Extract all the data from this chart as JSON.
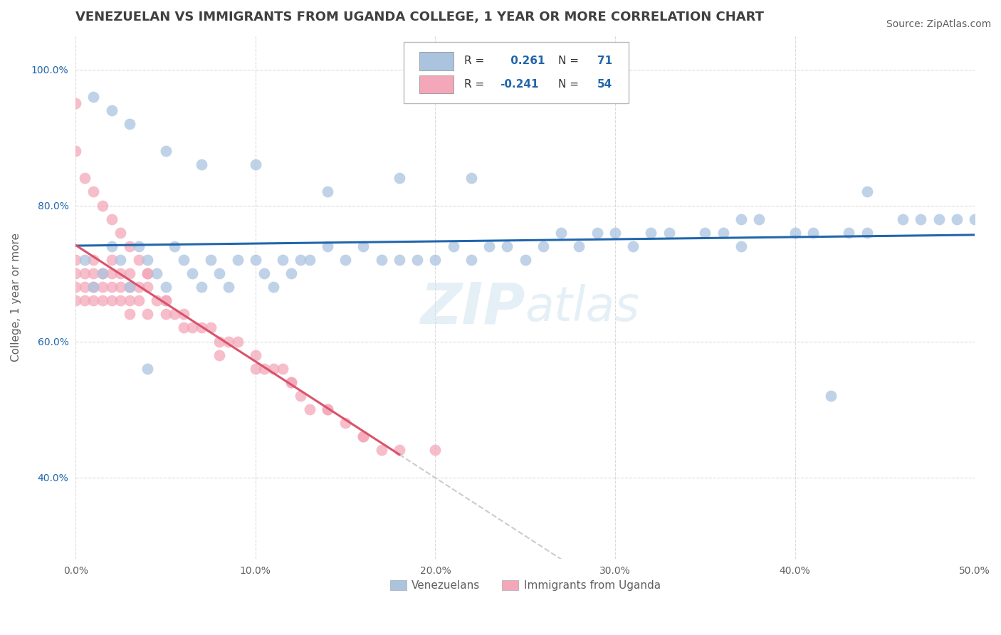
{
  "title": "VENEZUELAN VS IMMIGRANTS FROM UGANDA COLLEGE, 1 YEAR OR MORE CORRELATION CHART",
  "source": "Source: ZipAtlas.com",
  "ylabel": "College, 1 year or more",
  "xlim": [
    0.0,
    0.5
  ],
  "ylim": [
    0.28,
    1.05
  ],
  "xticks": [
    0.0,
    0.1,
    0.2,
    0.3,
    0.4,
    0.5
  ],
  "xticklabels": [
    "0.0%",
    "10.0%",
    "20.0%",
    "30.0%",
    "40.0%",
    "50.0%"
  ],
  "yticks": [
    0.4,
    0.6,
    0.8,
    1.0
  ],
  "yticklabels": [
    "40.0%",
    "60.0%",
    "80.0%",
    "100.0%"
  ],
  "blue_color": "#aac4e0",
  "pink_color": "#f4a7b9",
  "blue_line_color": "#2166ac",
  "pink_line_color": "#d9536a",
  "dash_line_color": "#cccccc",
  "grid_color": "#cccccc",
  "bg_color": "#ffffff",
  "title_color": "#404040",
  "axis_label_color": "#606060",
  "tick_color": "#2166ac",
  "venezuelan_x": [
    0.005,
    0.01,
    0.015,
    0.02,
    0.025,
    0.03,
    0.035,
    0.04,
    0.045,
    0.05,
    0.055,
    0.06,
    0.065,
    0.07,
    0.075,
    0.08,
    0.085,
    0.09,
    0.1,
    0.105,
    0.11,
    0.115,
    0.12,
    0.125,
    0.13,
    0.14,
    0.15,
    0.16,
    0.17,
    0.18,
    0.19,
    0.2,
    0.21,
    0.22,
    0.23,
    0.24,
    0.25,
    0.26,
    0.27,
    0.28,
    0.29,
    0.3,
    0.31,
    0.32,
    0.33,
    0.35,
    0.36,
    0.37,
    0.38,
    0.4,
    0.22,
    0.18,
    0.14,
    0.1,
    0.07,
    0.05,
    0.03,
    0.02,
    0.01,
    0.04,
    0.37,
    0.41,
    0.43,
    0.44,
    0.46,
    0.47,
    0.48,
    0.49,
    0.5,
    0.44,
    0.42
  ],
  "venezuelan_y": [
    0.72,
    0.68,
    0.7,
    0.74,
    0.72,
    0.68,
    0.74,
    0.72,
    0.7,
    0.68,
    0.74,
    0.72,
    0.7,
    0.68,
    0.72,
    0.7,
    0.68,
    0.72,
    0.72,
    0.7,
    0.68,
    0.72,
    0.7,
    0.72,
    0.72,
    0.74,
    0.72,
    0.74,
    0.72,
    0.72,
    0.72,
    0.72,
    0.74,
    0.72,
    0.74,
    0.74,
    0.72,
    0.74,
    0.76,
    0.74,
    0.76,
    0.76,
    0.74,
    0.76,
    0.76,
    0.76,
    0.76,
    0.78,
    0.78,
    0.76,
    0.84,
    0.84,
    0.82,
    0.86,
    0.86,
    0.88,
    0.92,
    0.94,
    0.96,
    0.56,
    0.74,
    0.76,
    0.76,
    0.76,
    0.78,
    0.78,
    0.78,
    0.78,
    0.78,
    0.82,
    0.52
  ],
  "uganda_x": [
    0.0,
    0.0,
    0.0,
    0.0,
    0.005,
    0.005,
    0.005,
    0.01,
    0.01,
    0.01,
    0.01,
    0.015,
    0.015,
    0.015,
    0.02,
    0.02,
    0.02,
    0.02,
    0.025,
    0.025,
    0.025,
    0.03,
    0.03,
    0.03,
    0.03,
    0.035,
    0.035,
    0.04,
    0.04,
    0.04,
    0.045,
    0.05,
    0.05,
    0.055,
    0.06,
    0.065,
    0.07,
    0.075,
    0.08,
    0.085,
    0.09,
    0.1,
    0.105,
    0.11,
    0.115,
    0.12,
    0.125,
    0.13,
    0.14,
    0.15,
    0.16,
    0.17,
    0.18,
    0.2
  ],
  "uganda_y": [
    0.72,
    0.7,
    0.68,
    0.66,
    0.7,
    0.68,
    0.66,
    0.72,
    0.7,
    0.68,
    0.66,
    0.7,
    0.68,
    0.66,
    0.72,
    0.7,
    0.68,
    0.66,
    0.7,
    0.68,
    0.66,
    0.7,
    0.68,
    0.66,
    0.64,
    0.68,
    0.66,
    0.7,
    0.68,
    0.64,
    0.66,
    0.66,
    0.64,
    0.64,
    0.64,
    0.62,
    0.62,
    0.62,
    0.6,
    0.6,
    0.6,
    0.58,
    0.56,
    0.56,
    0.56,
    0.54,
    0.52,
    0.5,
    0.5,
    0.48,
    0.46,
    0.44,
    0.44,
    0.44
  ],
  "uganda_x_extra": [
    0.0,
    0.0,
    0.005,
    0.01,
    0.015,
    0.02,
    0.025,
    0.03,
    0.035,
    0.04,
    0.05,
    0.06,
    0.08,
    0.1,
    0.12,
    0.14,
    0.16
  ],
  "uganda_y_extra": [
    0.95,
    0.88,
    0.84,
    0.82,
    0.8,
    0.78,
    0.76,
    0.74,
    0.72,
    0.7,
    0.66,
    0.62,
    0.58,
    0.56,
    0.54,
    0.5,
    0.46
  ],
  "legend_label1": "Venezuelans",
  "legend_label2": "Immigrants from Uganda",
  "title_fontsize": 13,
  "axis_label_fontsize": 11,
  "tick_fontsize": 10,
  "source_fontsize": 10
}
